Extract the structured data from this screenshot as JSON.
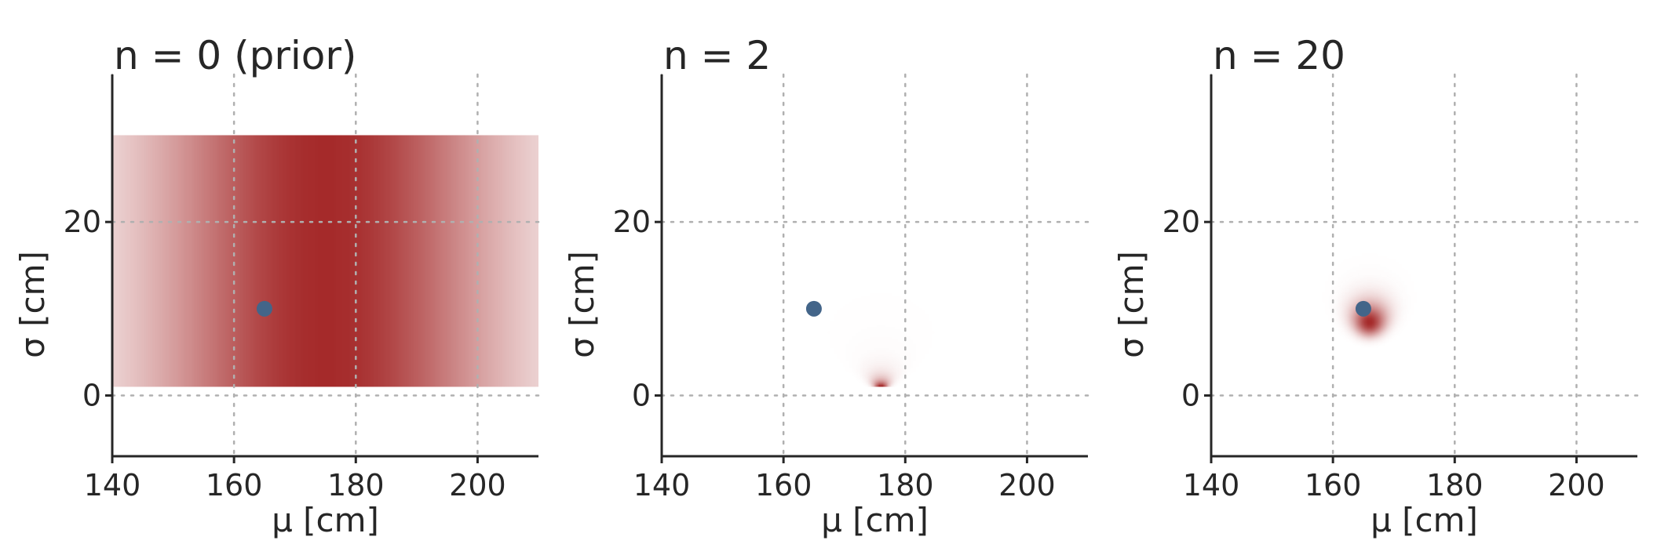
{
  "colors": {
    "density": "#a52a2a",
    "true_point": "#436589",
    "grid": "#b0b0b0",
    "axis": "#262626"
  },
  "chart_data": [
    {
      "type": "heatmap",
      "title": "n = 0 (prior)",
      "xlabel": "μ [cm]",
      "ylabel": "σ [cm]",
      "xlim": [
        140,
        210
      ],
      "ylim": [
        -7,
        37
      ],
      "xticks": [
        140,
        160,
        180,
        200
      ],
      "yticks": [
        0,
        20
      ],
      "grid": true,
      "density_extent": {
        "mu": [
          140,
          210
        ],
        "sigma": [
          1,
          30
        ]
      },
      "density": {
        "kind": "prior",
        "mu_mean": 175,
        "mu_sd": 20
      },
      "true_value": {
        "mu": 165,
        "sigma": 10
      }
    },
    {
      "type": "heatmap",
      "title": "n = 2",
      "xlabel": "μ [cm]",
      "ylabel": "σ [cm]",
      "xlim": [
        140,
        210
      ],
      "ylim": [
        -7,
        37
      ],
      "xticks": [
        140,
        160,
        180,
        200
      ],
      "yticks": [
        0,
        20
      ],
      "grid": true,
      "density_extent": {
        "mu": [
          140,
          210
        ],
        "sigma": [
          1,
          30
        ]
      },
      "density": {
        "kind": "posterior",
        "n": 2,
        "sample_mean": 176,
        "sample_var": 1
      },
      "true_value": {
        "mu": 165,
        "sigma": 10
      }
    },
    {
      "type": "heatmap",
      "title": "n = 20",
      "xlabel": "μ [cm]",
      "ylabel": "σ [cm]",
      "xlim": [
        140,
        210
      ],
      "ylim": [
        -7,
        37
      ],
      "xticks": [
        140,
        160,
        180,
        200
      ],
      "yticks": [
        0,
        20
      ],
      "grid": true,
      "density_extent": {
        "mu": [
          140,
          210
        ],
        "sigma": [
          1,
          30
        ]
      },
      "density": {
        "kind": "posterior",
        "n": 20,
        "sample_mean": 166,
        "sample_var": 75
      },
      "true_value": {
        "mu": 165,
        "sigma": 10
      }
    }
  ]
}
